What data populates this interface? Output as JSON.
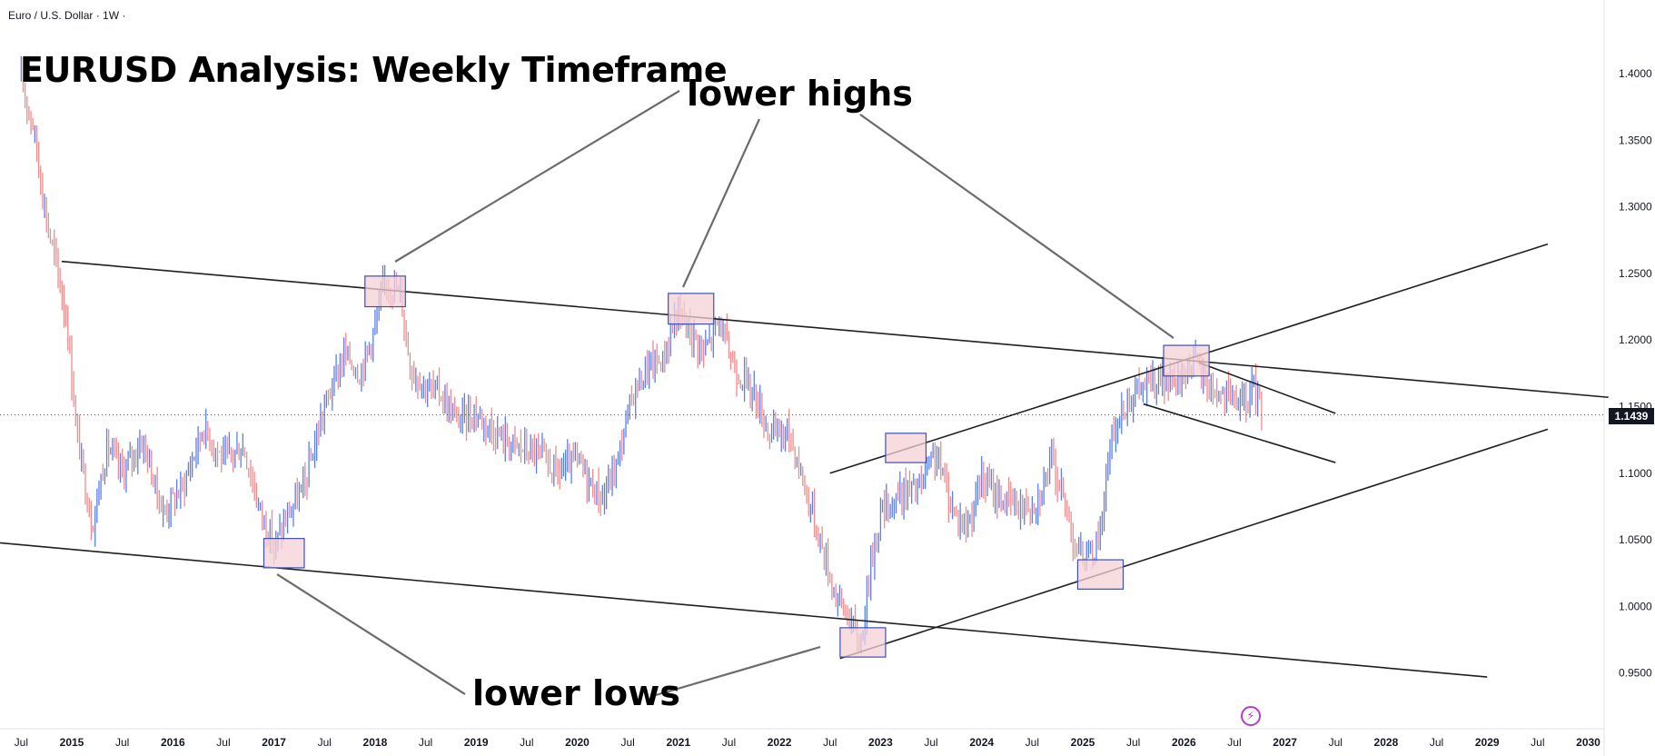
{
  "header": {
    "symbol": "Euro / U.S. Dollar · 1W ·"
  },
  "title": "EURUSD Analysis: Weekly Timeframe",
  "annotations": {
    "lower_highs": "lower highs",
    "lower_lows": "lower lows"
  },
  "colors": {
    "up": "#5a7ff0",
    "down": "#ef8b8b",
    "trendline": "#1f1f1f",
    "pointer": "#6b6b6b",
    "box_border": "#3f4fb3",
    "box_fill": "#f6d2d6",
    "badge_bg": "#131722"
  },
  "icons": {
    "bolt": "lightning-bolt-icon"
  },
  "chart_data": {
    "type": "candlestick",
    "x_tick_labels": [
      "Jul",
      "2015",
      "Jul",
      "2016",
      "Jul",
      "2017",
      "Jul",
      "2018",
      "Jul",
      "2019",
      "Jul",
      "2020",
      "Jul",
      "2021",
      "Jul",
      "2022",
      "Jul",
      "2023",
      "Jul",
      "2024",
      "Jul",
      "2025",
      "Jul",
      "2026",
      "Jul",
      "2027",
      "Jul",
      "2028",
      "Jul",
      "2029",
      "Jul",
      "2030"
    ],
    "y_ticks": [
      "1.4000",
      "1.3500",
      "1.3000",
      "1.2500",
      "1.2000",
      "1.1500",
      "1.1000",
      "1.0500",
      "1.0000",
      "0.9500"
    ],
    "ylim": [
      0.912,
      1.451
    ],
    "last_price": "1.1439",
    "price_path": [
      [
        2014.5,
        1.395
      ],
      [
        2014.62,
        1.36
      ],
      [
        2014.75,
        1.29
      ],
      [
        2014.85,
        1.255
      ],
      [
        2014.95,
        1.215
      ],
      [
        2015.05,
        1.13
      ],
      [
        2015.2,
        1.06
      ],
      [
        2015.35,
        1.12
      ],
      [
        2015.5,
        1.1
      ],
      [
        2015.7,
        1.125
      ],
      [
        2015.9,
        1.07
      ],
      [
        2016.1,
        1.09
      ],
      [
        2016.3,
        1.135
      ],
      [
        2016.5,
        1.11
      ],
      [
        2016.7,
        1.12
      ],
      [
        2016.85,
        1.075
      ],
      [
        2017.0,
        1.045
      ],
      [
        2017.15,
        1.07
      ],
      [
        2017.3,
        1.09
      ],
      [
        2017.5,
        1.15
      ],
      [
        2017.7,
        1.19
      ],
      [
        2017.85,
        1.175
      ],
      [
        2018.0,
        1.21
      ],
      [
        2018.1,
        1.245
      ],
      [
        2018.25,
        1.235
      ],
      [
        2018.35,
        1.18
      ],
      [
        2018.5,
        1.165
      ],
      [
        2018.65,
        1.16
      ],
      [
        2018.8,
        1.14
      ],
      [
        2019.0,
        1.145
      ],
      [
        2019.2,
        1.13
      ],
      [
        2019.4,
        1.12
      ],
      [
        2019.6,
        1.115
      ],
      [
        2019.8,
        1.1
      ],
      [
        2020.0,
        1.11
      ],
      [
        2020.15,
        1.09
      ],
      [
        2020.25,
        1.08
      ],
      [
        2020.4,
        1.11
      ],
      [
        2020.55,
        1.16
      ],
      [
        2020.7,
        1.18
      ],
      [
        2020.85,
        1.185
      ],
      [
        2020.98,
        1.22
      ],
      [
        2021.1,
        1.21
      ],
      [
        2021.25,
        1.19
      ],
      [
        2021.4,
        1.215
      ],
      [
        2021.55,
        1.18
      ],
      [
        2021.75,
        1.16
      ],
      [
        2021.9,
        1.13
      ],
      [
        2022.1,
        1.13
      ],
      [
        2022.25,
        1.09
      ],
      [
        2022.4,
        1.05
      ],
      [
        2022.55,
        1.01
      ],
      [
        2022.7,
        0.99
      ],
      [
        2022.8,
        0.97
      ],
      [
        2022.9,
        1.03
      ],
      [
        2023.0,
        1.07
      ],
      [
        2023.2,
        1.085
      ],
      [
        2023.4,
        1.09
      ],
      [
        2023.55,
        1.115
      ],
      [
        2023.7,
        1.075
      ],
      [
        2023.85,
        1.06
      ],
      [
        2024.0,
        1.095
      ],
      [
        2024.2,
        1.08
      ],
      [
        2024.4,
        1.075
      ],
      [
        2024.55,
        1.08
      ],
      [
        2024.7,
        1.11
      ],
      [
        2024.85,
        1.07
      ],
      [
        2024.95,
        1.04
      ],
      [
        2025.05,
        1.035
      ],
      [
        2025.15,
        1.05
      ],
      [
        2025.3,
        1.13
      ],
      [
        2025.45,
        1.155
      ],
      [
        2025.6,
        1.165
      ],
      [
        2025.75,
        1.17
      ],
      [
        2025.9,
        1.165
      ],
      [
        2026.0,
        1.175
      ],
      [
        2026.1,
        1.185
      ],
      [
        2026.2,
        1.17
      ],
      [
        2026.35,
        1.16
      ],
      [
        2026.5,
        1.155
      ],
      [
        2026.6,
        1.15
      ],
      [
        2026.7,
        1.165
      ],
      [
        2026.78,
        1.1439
      ]
    ],
    "trendlines": [
      {
        "from": [
          2014.9,
          1.259
        ],
        "to": [
          2030.2,
          1.157
        ]
      },
      {
        "from": [
          2014.1,
          1.049
        ],
        "to": [
          2029.0,
          0.947
        ]
      },
      {
        "from": [
          2022.6,
          0.961
        ],
        "to": [
          2029.6,
          1.133
        ]
      },
      {
        "from": [
          2022.5,
          1.1
        ],
        "to": [
          2029.6,
          1.272
        ]
      },
      {
        "from": [
          2025.6,
          1.152
        ],
        "to": [
          2027.5,
          1.108
        ]
      },
      {
        "from": [
          2026.15,
          1.183
        ],
        "to": [
          2027.5,
          1.145
        ]
      }
    ],
    "highlight_boxes": [
      {
        "x": [
          2017.9,
          2018.3
        ],
        "y": [
          1.225,
          1.248
        ]
      },
      {
        "x": [
          2020.9,
          2021.35
        ],
        "y": [
          1.212,
          1.235
        ]
      },
      {
        "x": [
          2022.6,
          2023.05
        ],
        "y": [
          0.962,
          0.984
        ]
      },
      {
        "x": [
          2023.05,
          2023.45
        ],
        "y": [
          1.108,
          1.13
        ]
      },
      {
        "x": [
          2016.9,
          2017.3
        ],
        "y": [
          1.029,
          1.051
        ]
      },
      {
        "x": [
          2024.95,
          2025.4
        ],
        "y": [
          1.013,
          1.035
        ]
      },
      {
        "x": [
          2025.8,
          2026.25
        ],
        "y": [
          1.173,
          1.196
        ]
      }
    ]
  }
}
